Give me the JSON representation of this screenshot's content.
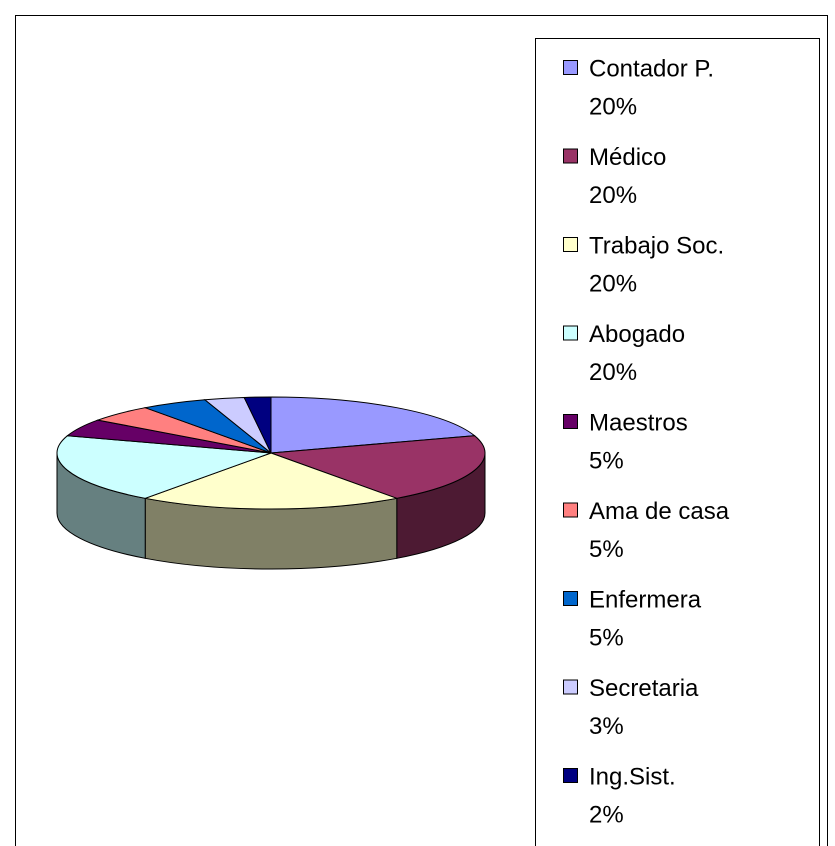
{
  "chart_data": {
    "type": "pie3d",
    "categories": [
      "Contador P.",
      "Médico",
      "Trabajo Soc.",
      "Abogado",
      "Maestros",
      "Ama de casa",
      "Enfermera",
      "Secretaria",
      "Ing.Sist."
    ],
    "values": [
      20,
      20,
      20,
      20,
      5,
      5,
      5,
      3,
      2
    ],
    "value_labels": [
      "20%",
      "20%",
      "20%",
      "20%",
      "5%",
      "5%",
      "5%",
      "3%",
      "2%"
    ],
    "colors": [
      "#9999ff",
      "#993366",
      "#ffffcc",
      "#ccffff",
      "#660066",
      "#ff8080",
      "#0066cc",
      "#ccccff",
      "#000080"
    ],
    "legend": "right"
  }
}
